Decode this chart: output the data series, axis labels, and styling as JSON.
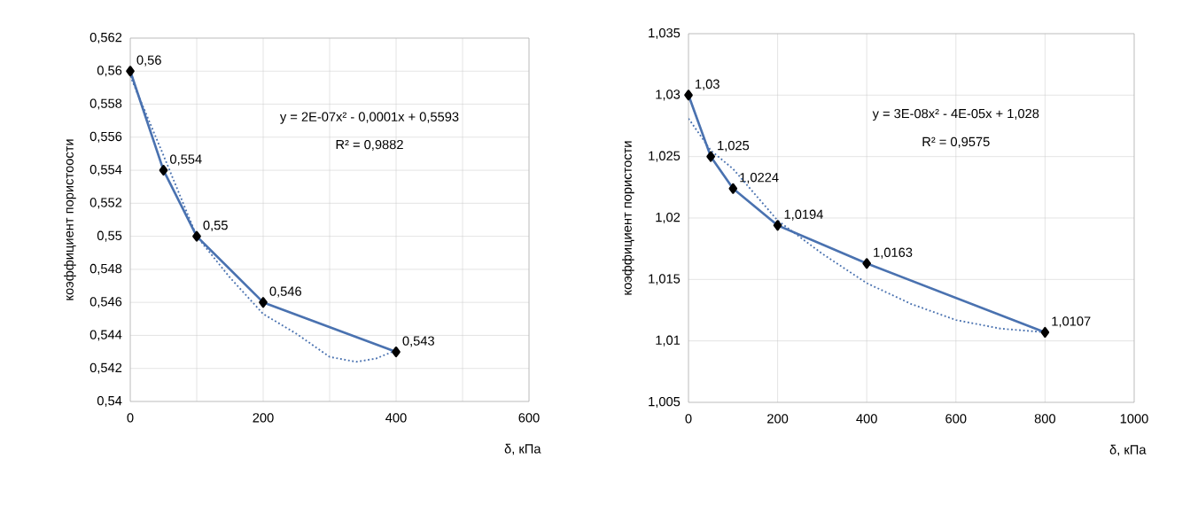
{
  "chart_data": [
    {
      "type": "line",
      "xlabel": "δ, кПа",
      "ylabel": "коэффициент пористоости",
      "annotations": [
        "y = 2E-07x² - 0,0001x + 0,5593",
        "R² = 0,9882"
      ],
      "series": [
        {
          "color": "#4a72b0",
          "marker": "diamond",
          "line_style": "solid",
          "x": [
            0,
            50,
            100,
            200,
            400
          ],
          "values": [
            0.56,
            0.554,
            0.55,
            0.546,
            0.543
          ],
          "value_labels": [
            "0,56",
            "0,554",
            "0,55",
            "0,546",
            "0,543"
          ]
        },
        {
          "color": "#4a72b0",
          "marker": "none",
          "line_style": "dotted",
          "x": [
            0,
            50,
            100,
            150,
            200,
            250,
            300,
            340,
            370,
            400
          ],
          "values": [
            0.5597,
            0.5549,
            0.55,
            0.5475,
            0.5453,
            0.5441,
            0.5427,
            0.5424,
            0.5426,
            0.5431
          ]
        }
      ],
      "xlim": [
        0,
        600
      ],
      "xticks": [
        0,
        {
          "value": 100,
          "label": null
        },
        200,
        {
          "value": 300,
          "label": null
        },
        400,
        {
          "value": 500,
          "label": null
        },
        600
      ],
      "ylim": [
        0.54,
        0.562
      ],
      "yticks": [
        {
          "value": 0.54,
          "label": "0,54"
        },
        {
          "value": 0.542,
          "label": "0,542"
        },
        {
          "value": 0.544,
          "label": "0,544"
        },
        {
          "value": 0.546,
          "label": "0,546"
        },
        {
          "value": 0.548,
          "label": "0,548"
        },
        {
          "value": 0.55,
          "label": "0,55"
        },
        {
          "value": 0.552,
          "label": "0,552"
        },
        {
          "value": 0.554,
          "label": "0,554"
        },
        {
          "value": 0.556,
          "label": "0,556"
        },
        {
          "value": 0.558,
          "label": "0,558"
        },
        {
          "value": 0.56,
          "label": "0,56"
        },
        {
          "value": 0.562,
          "label": "0,562"
        }
      ],
      "grid": true
    },
    {
      "type": "line",
      "xlabel": "δ, кПа",
      "ylabel": "коэффициент пористости",
      "annotations": [
        "y = 3E-08x² - 4E-05x + 1,028",
        "R² = 0,9575"
      ],
      "series": [
        {
          "color": "#4a72b0",
          "marker": "diamond",
          "line_style": "solid",
          "x": [
            0,
            50,
            100,
            200,
            400,
            800
          ],
          "values": [
            1.03,
            1.025,
            1.0224,
            1.0194,
            1.0163,
            1.0107
          ],
          "value_labels": [
            "1,03",
            "1,025",
            "1,0224",
            "1,0194",
            "1,0163",
            "1,0107"
          ]
        },
        {
          "color": "#4a72b0",
          "marker": "none",
          "line_style": "dotted",
          "x": [
            0,
            50,
            100,
            200,
            300,
            400,
            500,
            600,
            700,
            800
          ],
          "values": [
            1.0281,
            1.0255,
            1.024,
            1.0198,
            1.0171,
            1.0147,
            1.013,
            1.0117,
            1.011,
            1.0107
          ]
        }
      ],
      "xlim": [
        0,
        1000
      ],
      "xticks": [
        0,
        200,
        400,
        600,
        800,
        1000
      ],
      "ylim": [
        1.005,
        1.035
      ],
      "yticks": [
        {
          "value": 1.005,
          "label": "1,005"
        },
        {
          "value": 1.01,
          "label": "1,01"
        },
        {
          "value": 1.015,
          "label": "1,015"
        },
        {
          "value": 1.02,
          "label": "1,02"
        },
        {
          "value": 1.025,
          "label": "1,025"
        },
        {
          "value": 1.03,
          "label": "1,03"
        },
        {
          "value": 1.035,
          "label": "1,035"
        }
      ],
      "grid": true
    }
  ]
}
